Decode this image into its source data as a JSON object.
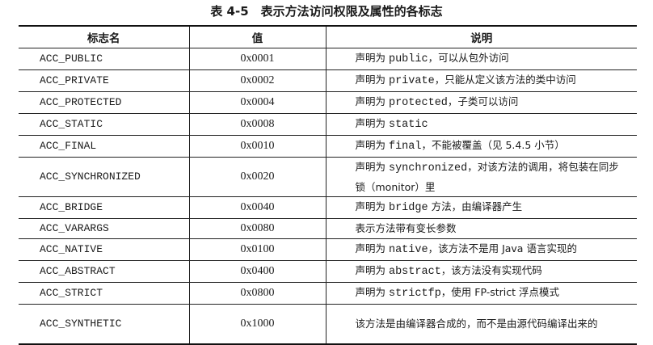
{
  "title": "表 4-5　表示方法访问权限及属性的各标志",
  "headers": [
    "标志名",
    "值",
    "说明"
  ],
  "rows": [
    {
      "name": "ACC_PUBLIC",
      "value": "0x0001",
      "desc": [
        {
          "t": "声明为 "
        },
        {
          "t": "public",
          "code": true
        },
        {
          "t": "，可以从包外访问"
        }
      ]
    },
    {
      "name": "ACC_PRIVATE",
      "value": "0x0002",
      "desc": [
        {
          "t": "声明为 "
        },
        {
          "t": "private",
          "code": true
        },
        {
          "t": "，只能从定义该方法的类中访问"
        }
      ]
    },
    {
      "name": "ACC_PROTECTED",
      "value": "0x0004",
      "desc": [
        {
          "t": "声明为 "
        },
        {
          "t": "protected",
          "code": true
        },
        {
          "t": "，子类可以访问"
        }
      ]
    },
    {
      "name": "ACC_STATIC",
      "value": "0x0008",
      "desc": [
        {
          "t": "声明为 "
        },
        {
          "t": "static",
          "code": true
        }
      ]
    },
    {
      "name": "ACC_FINAL",
      "value": "0x0010",
      "desc": [
        {
          "t": "声明为 "
        },
        {
          "t": "final",
          "code": true
        },
        {
          "t": "，不能被覆盖（见 5.4.5 小节）"
        }
      ]
    },
    {
      "name": "ACC_SYNCHRONIZED",
      "value": "0x0020",
      "desc": [
        {
          "t": "声明为 "
        },
        {
          "t": "synchronized",
          "code": true
        },
        {
          "t": "，对该方法的调用，将包装在同步锁（monitor）里"
        }
      ],
      "two_line": true
    },
    {
      "name": "ACC_BRIDGE",
      "value": "0x0040",
      "desc": [
        {
          "t": "声明为 "
        },
        {
          "t": "bridge",
          "code": true
        },
        {
          "t": " 方法，由编译器产生"
        }
      ]
    },
    {
      "name": "ACC_VARARGS",
      "value": "0x0080",
      "desc": [
        {
          "t": "表示方法带有变长参数"
        }
      ]
    },
    {
      "name": "ACC_NATIVE",
      "value": "0x0100",
      "desc": [
        {
          "t": "声明为 "
        },
        {
          "t": "native",
          "code": true
        },
        {
          "t": "，该方法不是用 Java 语言实现的"
        }
      ]
    },
    {
      "name": "ACC_ABSTRACT",
      "value": "0x0400",
      "desc": [
        {
          "t": "声明为 "
        },
        {
          "t": "abstract",
          "code": true
        },
        {
          "t": "，该方法没有实现代码"
        }
      ]
    },
    {
      "name": "ACC_STRICT",
      "value": "0x0800",
      "desc": [
        {
          "t": "声明为 "
        },
        {
          "t": "strictfp",
          "code": true
        },
        {
          "t": "，使用 FP-strict 浮点模式"
        }
      ]
    },
    {
      "name": "ACC_SYNTHETIC",
      "value": "0x1000",
      "desc": [
        {
          "t": "该方法是由编译器合成的，而不是由源代码编译出来的"
        }
      ],
      "two_line": true
    }
  ]
}
